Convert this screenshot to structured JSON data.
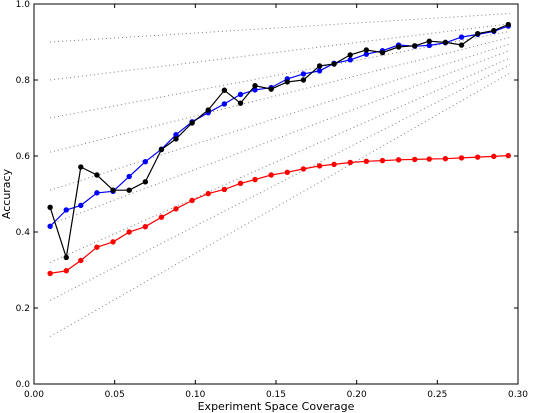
{
  "chart_data": {
    "type": "line",
    "title": "",
    "xlabel": "Experiment Space Coverage",
    "ylabel": "Accuracy",
    "xlim": [
      0.0,
      0.3
    ],
    "ylim": [
      0.0,
      1.0
    ],
    "xticks": [
      "0.00",
      "0.05",
      "0.10",
      "0.15",
      "0.20",
      "0.25",
      "0.30"
    ],
    "yticks": [
      "0.0",
      "0.2",
      "0.4",
      "0.6",
      "0.8",
      "1.0"
    ],
    "grid": false,
    "legend": "none",
    "reference_lines": {
      "style": "dotted",
      "color": "#808080",
      "x_range": [
        0.01,
        0.295
      ],
      "segments": [
        [
          0.125,
          0.818
        ],
        [
          0.22,
          0.84
        ],
        [
          0.32,
          0.858
        ],
        [
          0.42,
          0.878
        ],
        [
          0.51,
          0.895
        ],
        [
          0.61,
          0.912
        ],
        [
          0.7,
          0.928
        ],
        [
          0.8,
          0.948
        ],
        [
          0.9,
          0.975
        ]
      ]
    },
    "series": [
      {
        "color": "#0000ff",
        "marker": "circle",
        "points": [
          [
            0.01,
            0.415
          ],
          [
            0.02,
            0.458
          ],
          [
            0.029,
            0.47
          ],
          [
            0.039,
            0.503
          ],
          [
            0.049,
            0.507
          ],
          [
            0.059,
            0.546
          ],
          [
            0.069,
            0.585
          ],
          [
            0.079,
            0.618
          ],
          [
            0.088,
            0.656
          ],
          [
            0.098,
            0.69
          ],
          [
            0.108,
            0.714
          ],
          [
            0.118,
            0.737
          ],
          [
            0.128,
            0.762
          ],
          [
            0.137,
            0.774
          ],
          [
            0.147,
            0.78
          ],
          [
            0.157,
            0.803
          ],
          [
            0.167,
            0.816
          ],
          [
            0.177,
            0.824
          ],
          [
            0.186,
            0.844
          ],
          [
            0.196,
            0.853
          ],
          [
            0.206,
            0.868
          ],
          [
            0.216,
            0.877
          ],
          [
            0.226,
            0.892
          ],
          [
            0.236,
            0.889
          ],
          [
            0.245,
            0.891
          ],
          [
            0.255,
            0.898
          ],
          [
            0.265,
            0.913
          ],
          [
            0.275,
            0.92
          ],
          [
            0.285,
            0.928
          ],
          [
            0.294,
            0.942
          ]
        ]
      },
      {
        "color": "#000000",
        "marker": "circle",
        "points": [
          [
            0.01,
            0.465
          ],
          [
            0.02,
            0.333
          ],
          [
            0.029,
            0.571
          ],
          [
            0.039,
            0.55
          ],
          [
            0.049,
            0.51
          ],
          [
            0.059,
            0.51
          ],
          [
            0.069,
            0.532
          ],
          [
            0.079,
            0.617
          ],
          [
            0.088,
            0.645
          ],
          [
            0.098,
            0.687
          ],
          [
            0.108,
            0.721
          ],
          [
            0.118,
            0.773
          ],
          [
            0.128,
            0.739
          ],
          [
            0.137,
            0.785
          ],
          [
            0.147,
            0.776
          ],
          [
            0.157,
            0.795
          ],
          [
            0.167,
            0.8
          ],
          [
            0.177,
            0.837
          ],
          [
            0.186,
            0.842
          ],
          [
            0.196,
            0.866
          ],
          [
            0.206,
            0.879
          ],
          [
            0.216,
            0.872
          ],
          [
            0.226,
            0.887
          ],
          [
            0.236,
            0.89
          ],
          [
            0.245,
            0.902
          ],
          [
            0.255,
            0.899
          ],
          [
            0.265,
            0.892
          ],
          [
            0.275,
            0.922
          ],
          [
            0.285,
            0.93
          ],
          [
            0.294,
            0.946
          ]
        ]
      },
      {
        "color": "#ff0000",
        "marker": "circle",
        "points": [
          [
            0.01,
            0.291
          ],
          [
            0.02,
            0.298
          ],
          [
            0.029,
            0.325
          ],
          [
            0.039,
            0.36
          ],
          [
            0.049,
            0.374
          ],
          [
            0.059,
            0.4
          ],
          [
            0.069,
            0.414
          ],
          [
            0.079,
            0.439
          ],
          [
            0.088,
            0.461
          ],
          [
            0.098,
            0.483
          ],
          [
            0.108,
            0.501
          ],
          [
            0.118,
            0.512
          ],
          [
            0.128,
            0.528
          ],
          [
            0.137,
            0.538
          ],
          [
            0.147,
            0.55
          ],
          [
            0.157,
            0.557
          ],
          [
            0.167,
            0.566
          ],
          [
            0.177,
            0.574
          ],
          [
            0.186,
            0.578
          ],
          [
            0.196,
            0.583
          ],
          [
            0.206,
            0.586
          ],
          [
            0.216,
            0.588
          ],
          [
            0.226,
            0.59
          ],
          [
            0.236,
            0.591
          ],
          [
            0.245,
            0.592
          ],
          [
            0.255,
            0.593
          ],
          [
            0.265,
            0.595
          ],
          [
            0.275,
            0.597
          ],
          [
            0.285,
            0.599
          ],
          [
            0.294,
            0.601
          ]
        ]
      }
    ]
  }
}
